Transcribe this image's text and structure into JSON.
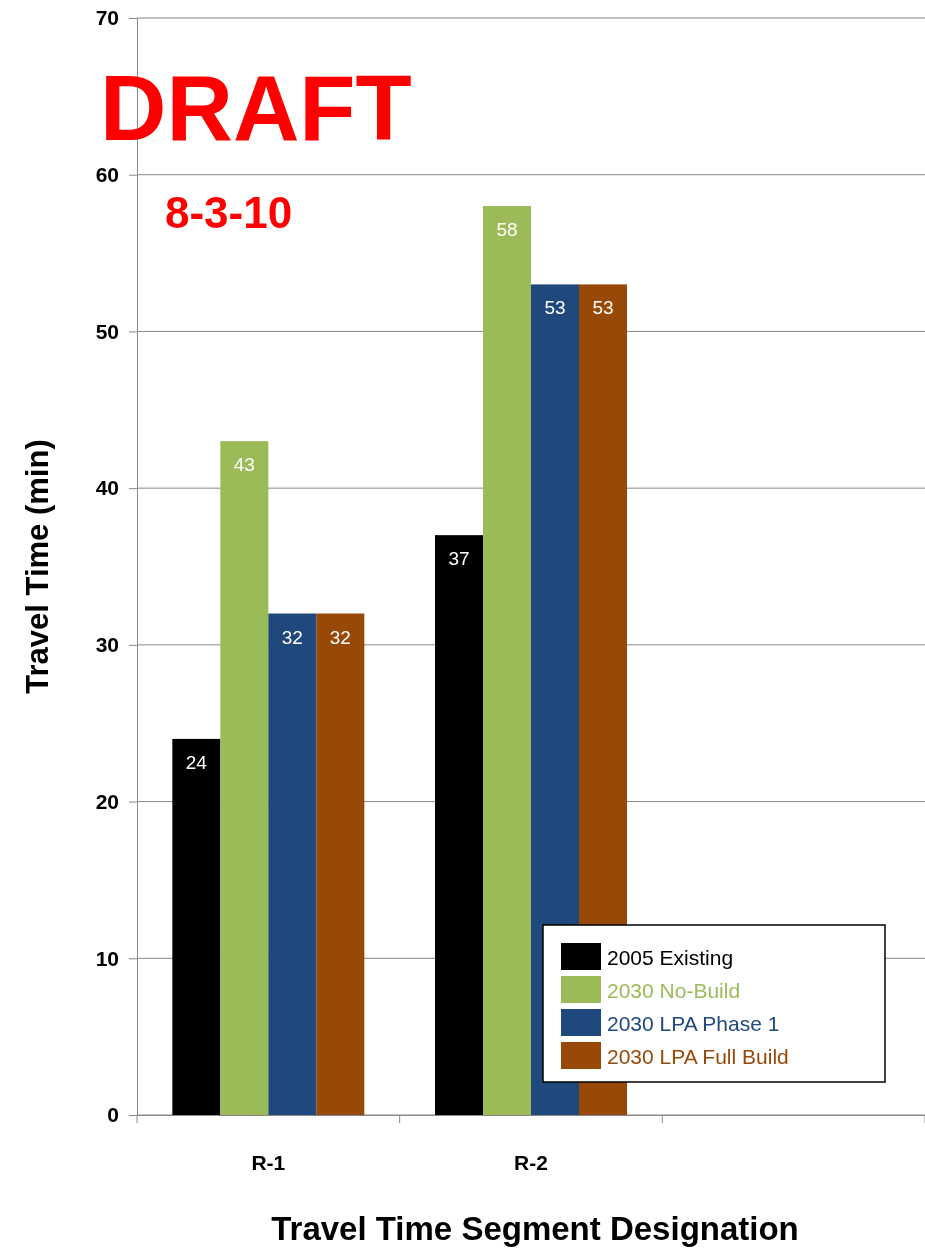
{
  "chart_data": {
    "type": "bar",
    "xlabel": "Travel Time Segment Designation",
    "ylabel": "Travel Time (min)",
    "categories": [
      "R-1",
      "R-2",
      null
    ],
    "series": [
      {
        "name": "2005 Existing",
        "color": "#000000",
        "values": [
          24,
          37,
          null
        ]
      },
      {
        "name": "2030 No-Build",
        "color": "#9bbb59",
        "values": [
          43,
          58,
          null
        ]
      },
      {
        "name": "2030 LPA Phase 1",
        "color": "#1f497d",
        "values": [
          32,
          53,
          null
        ]
      },
      {
        "name": "2030 LPA Full Build",
        "color": "#984807",
        "values": [
          32,
          53,
          null
        ]
      }
    ],
    "ylim": [
      0,
      70
    ],
    "yticks": [
      0,
      10,
      20,
      30,
      40,
      50,
      60,
      70
    ],
    "grid": "y",
    "legend": "bottom right",
    "data_labels": true,
    "annotations": [
      "DRAFT",
      "8-3-10"
    ]
  }
}
